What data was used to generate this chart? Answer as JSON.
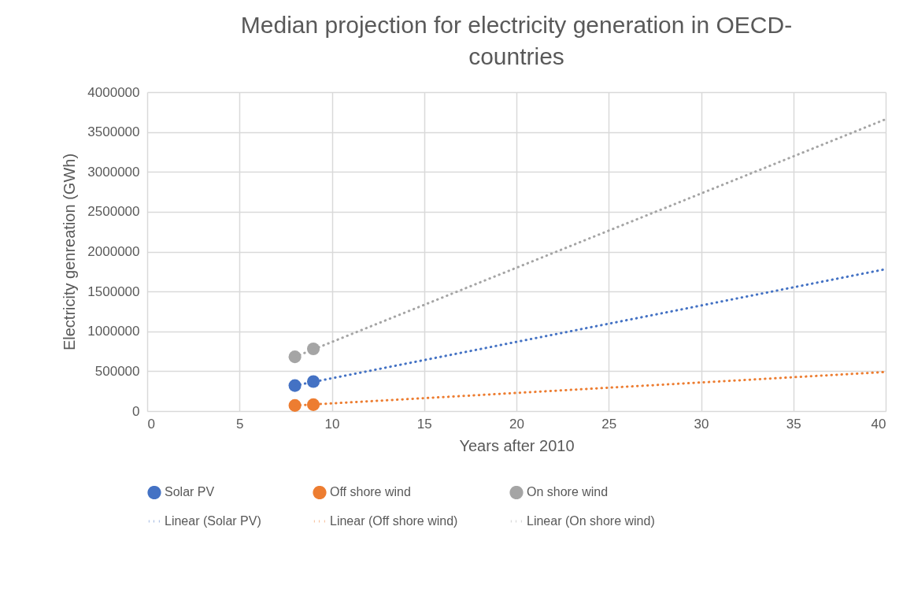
{
  "chart_data": {
    "type": "scatter",
    "title": "Median projection for electricity generation in OECD-countries",
    "xlabel": "Years after 2010",
    "ylabel": "Electricity genreation (GWh)",
    "xlim": [
      0,
      40
    ],
    "xticks": [
      0,
      5,
      10,
      15,
      20,
      25,
      30,
      35,
      40
    ],
    "ylim": [
      0,
      4000000
    ],
    "yticks": [
      0,
      500000,
      1000000,
      1500000,
      2000000,
      2500000,
      3000000,
      3500000,
      4000000
    ],
    "grid": true,
    "legend": "bottom",
    "series": [
      {
        "name": "Solar PV",
        "marker": "circle",
        "color": "#4472c4",
        "x": [
          8,
          9
        ],
        "values": [
          320000,
          370000
        ]
      },
      {
        "name": "Off shore wind",
        "marker": "circle",
        "color": "#ed7d31",
        "x": [
          8,
          9
        ],
        "values": [
          70000,
          80000
        ]
      },
      {
        "name": "On shore wind",
        "marker": "circle",
        "color": "#a5a5a5",
        "x": [
          8,
          9
        ],
        "values": [
          680000,
          780000
        ]
      },
      {
        "name": "Linear (Solar PV)",
        "type": "line",
        "line_style": "dotted",
        "color": "#4472c4",
        "x": [
          8,
          40
        ],
        "values": [
          320000,
          1780000
        ]
      },
      {
        "name": "Linear (Off shore wind)",
        "type": "line",
        "line_style": "dotted",
        "color": "#ed7d31",
        "x": [
          8,
          40
        ],
        "values": [
          70000,
          490000
        ]
      },
      {
        "name": "Linear (On shore wind)",
        "type": "line",
        "line_style": "dotted",
        "color": "#a5a5a5",
        "x": [
          8,
          40
        ],
        "values": [
          680000,
          3660000
        ]
      }
    ]
  }
}
